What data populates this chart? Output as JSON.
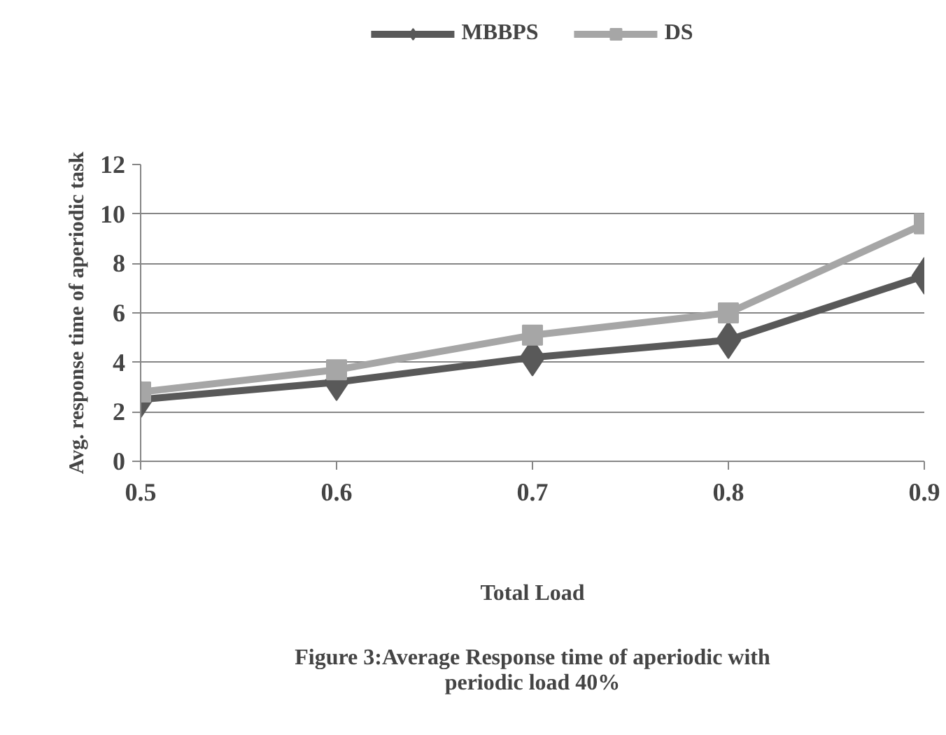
{
  "chart_data": {
    "type": "line",
    "xlabel": "Total Load",
    "ylabel": "Avg. response time of aperiodic task",
    "categories": [
      "0.5",
      "0.6",
      "0.7",
      "0.8",
      "0.9"
    ],
    "series": [
      {
        "name": "MBBPS",
        "color": "#595959",
        "values": [
          2.5,
          3.2,
          4.2,
          4.9,
          7.5
        ],
        "marker": "diamond"
      },
      {
        "name": "DS",
        "color": "#a6a6a6",
        "values": [
          2.8,
          3.7,
          5.1,
          6.0,
          9.6
        ],
        "marker": "square"
      }
    ],
    "ylim": [
      0,
      12
    ],
    "yticks": [
      0,
      2,
      4,
      6,
      8,
      10,
      12
    ],
    "grid": "y",
    "legend": "top",
    "annotations": [
      "Figure 3:Average Response time of aperiodic with",
      "periodic load 40%"
    ]
  }
}
